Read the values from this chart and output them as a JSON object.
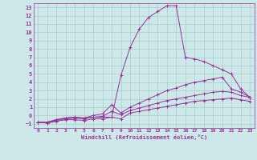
{
  "xlabel": "Windchill (Refroidissement éolien,°C)",
  "bg_color": "#cce8e8",
  "line_color": "#993399",
  "grid_color": "#aacccc",
  "xlim": [
    -0.5,
    23.5
  ],
  "ylim": [
    -1.5,
    13.5
  ],
  "xticks": [
    0,
    1,
    2,
    3,
    4,
    5,
    6,
    7,
    8,
    9,
    10,
    11,
    12,
    13,
    14,
    15,
    16,
    17,
    18,
    19,
    20,
    21,
    22,
    23
  ],
  "yticks": [
    -1,
    0,
    1,
    2,
    3,
    4,
    5,
    6,
    7,
    8,
    9,
    10,
    11,
    12,
    13
  ],
  "series": [
    {
      "x": [
        0,
        1,
        2,
        3,
        4,
        5,
        6,
        7,
        8,
        9,
        10,
        11,
        12,
        13,
        14,
        15,
        16,
        17,
        18,
        19,
        20,
        21,
        22,
        23
      ],
      "y": [
        -0.8,
        -0.8,
        -0.5,
        -0.3,
        -0.2,
        -0.3,
        -0.2,
        -0.2,
        -0.2,
        4.8,
        8.2,
        10.4,
        11.8,
        12.5,
        13.2,
        13.2,
        7.0,
        6.8,
        6.5,
        6.0,
        5.5,
        5.0,
        3.2,
        2.2
      ]
    },
    {
      "x": [
        0,
        1,
        2,
        3,
        4,
        5,
        6,
        7,
        8,
        9,
        10,
        11,
        12,
        13,
        14,
        15,
        16,
        17,
        18,
        19,
        20,
        21,
        22,
        23
      ],
      "y": [
        -0.8,
        -0.8,
        -0.5,
        -0.3,
        -0.2,
        -0.3,
        0.0,
        0.2,
        1.3,
        0.3,
        1.0,
        1.5,
        2.0,
        2.5,
        3.0,
        3.3,
        3.7,
        4.0,
        4.2,
        4.4,
        4.6,
        3.2,
        2.8,
        2.2
      ]
    },
    {
      "x": [
        0,
        1,
        2,
        3,
        4,
        5,
        6,
        7,
        8,
        9,
        10,
        11,
        12,
        13,
        14,
        15,
        16,
        17,
        18,
        19,
        20,
        21,
        22,
        23
      ],
      "y": [
        -0.8,
        -0.9,
        -0.6,
        -0.4,
        -0.3,
        -0.4,
        -0.2,
        -0.1,
        0.5,
        0.1,
        0.6,
        0.9,
        1.2,
        1.5,
        1.8,
        2.0,
        2.2,
        2.4,
        2.6,
        2.8,
        2.9,
        2.8,
        2.4,
        2.2
      ]
    },
    {
      "x": [
        0,
        1,
        2,
        3,
        4,
        5,
        6,
        7,
        8,
        9,
        10,
        11,
        12,
        13,
        14,
        15,
        16,
        17,
        18,
        19,
        20,
        21,
        22,
        23
      ],
      "y": [
        -0.8,
        -0.9,
        -0.7,
        -0.5,
        -0.5,
        -0.6,
        -0.4,
        -0.4,
        -0.2,
        -0.4,
        0.3,
        0.5,
        0.7,
        0.9,
        1.1,
        1.3,
        1.5,
        1.7,
        1.8,
        1.9,
        2.0,
        2.1,
        1.9,
        1.7
      ]
    }
  ]
}
